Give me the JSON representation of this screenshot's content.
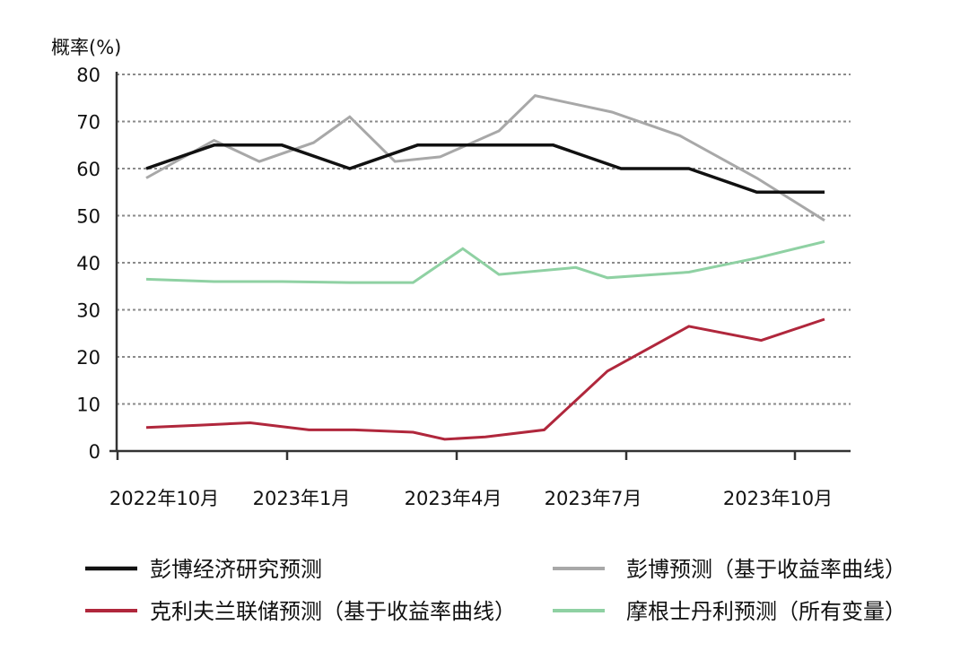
{
  "chart_data": {
    "type": "line",
    "ylabel": "概率(%)",
    "ylim": [
      0,
      80
    ],
    "yticks": [
      0,
      10,
      20,
      30,
      40,
      50,
      60,
      70,
      80
    ],
    "grid": "horizontal-dotted",
    "x_ticks": [
      "2022年10月",
      "2023年1月",
      "2023年4月",
      "2023年7月",
      "2023年10月"
    ],
    "legend_position": "bottom",
    "series": [
      {
        "name": "彭博经济研究预测",
        "color": "#111111",
        "points": [
          [
            0,
            60
          ],
          [
            1.5,
            65
          ],
          [
            3,
            65
          ],
          [
            4.5,
            60
          ],
          [
            6,
            65
          ],
          [
            9,
            65
          ],
          [
            10.5,
            60
          ],
          [
            12,
            60
          ],
          [
            13.5,
            55
          ],
          [
            15,
            55
          ]
        ]
      },
      {
        "name": "彭博预测（基于收益率曲线）",
        "color": "#a8a8a8",
        "points": [
          [
            0,
            58
          ],
          [
            1.5,
            66
          ],
          [
            2.5,
            61.5
          ],
          [
            3.7,
            65.5
          ],
          [
            4.5,
            71
          ],
          [
            5.5,
            61.5
          ],
          [
            6.5,
            62.5
          ],
          [
            7.8,
            68
          ],
          [
            8.6,
            75.5
          ],
          [
            10.3,
            72
          ],
          [
            11.8,
            67
          ],
          [
            13.5,
            58
          ],
          [
            15,
            49
          ]
        ]
      },
      {
        "name": "克利夫兰联储预测（基于收益率曲线）",
        "color": "#b0273c",
        "points": [
          [
            0,
            5
          ],
          [
            1.2,
            5.5
          ],
          [
            2.3,
            6
          ],
          [
            3.6,
            4.5
          ],
          [
            4.6,
            4.5
          ],
          [
            5.9,
            4
          ],
          [
            6.6,
            2.5
          ],
          [
            7.5,
            3
          ],
          [
            8.8,
            4.5
          ],
          [
            10.2,
            17
          ],
          [
            12,
            26.5
          ],
          [
            13.6,
            23.5
          ],
          [
            15,
            28
          ]
        ]
      },
      {
        "name": "摩根士丹利预测（所有变量）",
        "color": "#8fd1a3",
        "points": [
          [
            0,
            36.5
          ],
          [
            1.5,
            36
          ],
          [
            3,
            36
          ],
          [
            4.5,
            35.8
          ],
          [
            5.9,
            35.8
          ],
          [
            7,
            43
          ],
          [
            7.8,
            37.5
          ],
          [
            9.5,
            39
          ],
          [
            10.2,
            36.8
          ],
          [
            12,
            38
          ],
          [
            13.5,
            41
          ],
          [
            15,
            44.5
          ]
        ]
      }
    ]
  }
}
